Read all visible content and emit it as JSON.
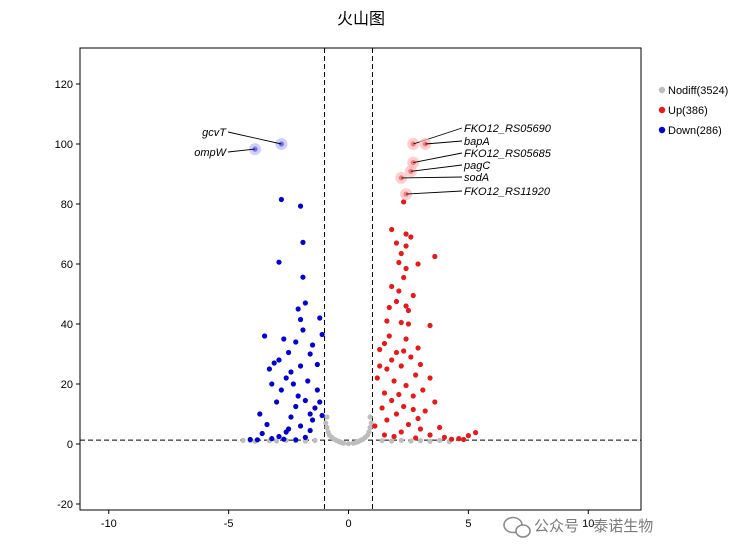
{
  "chart_data": {
    "type": "scatter",
    "title": "火山图",
    "xlabel": "",
    "ylabel": "",
    "xlim": [
      -11.2,
      12.2
    ],
    "ylim": [
      -22,
      132
    ],
    "x_ticks": [
      -10,
      -5,
      0,
      5,
      10
    ],
    "y_ticks": [
      -20,
      0,
      20,
      40,
      60,
      80,
      100,
      120
    ],
    "grid": false,
    "thresholds": {
      "x": [
        -1,
        1
      ],
      "y": 1.3
    },
    "legend": {
      "position": "right",
      "entries": [
        {
          "label": "Nodiff(3524)",
          "color": "#bdbdbd"
        },
        {
          "label": "Up(386)",
          "color": "#e41a1c"
        },
        {
          "label": "Down(286)",
          "color": "#0000cc"
        }
      ]
    },
    "series": [
      {
        "name": "Down",
        "color": "#0000cc",
        "points": [
          [
            -3.9,
            98.3
          ],
          [
            -2.8,
            100.0
          ],
          [
            -2.8,
            81.5
          ],
          [
            -2.0,
            79.3
          ],
          [
            -1.9,
            67.2
          ],
          [
            -2.9,
            60.6
          ],
          [
            -1.9,
            55.6
          ],
          [
            -1.8,
            47.0
          ],
          [
            -2.1,
            45.0
          ],
          [
            -2.0,
            41.5
          ],
          [
            -1.2,
            42.0
          ],
          [
            -1.9,
            38.0
          ],
          [
            -2.7,
            35.0
          ],
          [
            -2.2,
            34.0
          ],
          [
            -1.5,
            33.0
          ],
          [
            -3.5,
            36.0
          ],
          [
            -1.1,
            36.5
          ],
          [
            -2.5,
            30.5
          ],
          [
            -1.6,
            30.0
          ],
          [
            -2.9,
            28.0
          ],
          [
            -3.1,
            27.0
          ],
          [
            -2.0,
            26.0
          ],
          [
            -1.3,
            26.5
          ],
          [
            -3.3,
            25.0
          ],
          [
            -2.4,
            24.0
          ],
          [
            -2.6,
            22.0
          ],
          [
            -3.2,
            20.0
          ],
          [
            -1.7,
            21.0
          ],
          [
            -2.8,
            18.0
          ],
          [
            -2.1,
            16.0
          ],
          [
            -3.0,
            14.0
          ],
          [
            -2.2,
            12.5
          ],
          [
            -1.4,
            12.0
          ],
          [
            -1.6,
            10.0
          ],
          [
            -2.4,
            9.0
          ],
          [
            -3.4,
            6.5
          ],
          [
            -2.0,
            6.0
          ],
          [
            -2.6,
            4.0
          ],
          [
            -3.6,
            3.5
          ],
          [
            -2.9,
            2.5
          ],
          [
            -3.2,
            1.8
          ],
          [
            -4.1,
            1.5
          ],
          [
            -3.8,
            1.4
          ],
          [
            -2.2,
            1.4
          ],
          [
            -1.8,
            2.2
          ],
          [
            -2.7,
            1.6
          ],
          [
            -1.3,
            18.0
          ],
          [
            -1.2,
            14.0
          ],
          [
            -1.5,
            8.0
          ],
          [
            -1.8,
            14.5
          ],
          [
            -2.3,
            20.0
          ],
          [
            -1.1,
            9.5
          ],
          [
            -3.7,
            10.0
          ],
          [
            -2.5,
            5.0
          ],
          [
            -1.6,
            4.5
          ]
        ]
      },
      {
        "name": "Up",
        "color": "#e41a1c",
        "points": [
          [
            2.7,
            100.0
          ],
          [
            3.2,
            100.0
          ],
          [
            2.7,
            93.8
          ],
          [
            2.6,
            90.9
          ],
          [
            2.2,
            88.7
          ],
          [
            2.4,
            83.3
          ],
          [
            2.3,
            80.7
          ],
          [
            1.8,
            71.5
          ],
          [
            2.4,
            70.0
          ],
          [
            2.6,
            69.0
          ],
          [
            2.0,
            67.0
          ],
          [
            2.4,
            66.0
          ],
          [
            2.2,
            63.5
          ],
          [
            3.6,
            62.5
          ],
          [
            2.9,
            60.0
          ],
          [
            2.1,
            60.5
          ],
          [
            2.4,
            58.5
          ],
          [
            2.3,
            55.5
          ],
          [
            1.8,
            52.5
          ],
          [
            2.1,
            51.0
          ],
          [
            2.7,
            49.5
          ],
          [
            2.0,
            47.5
          ],
          [
            2.4,
            46.0
          ],
          [
            1.7,
            45.5
          ],
          [
            2.5,
            44.5
          ],
          [
            1.6,
            41.0
          ],
          [
            2.2,
            40.5
          ],
          [
            2.5,
            40.0
          ],
          [
            3.4,
            39.5
          ],
          [
            1.7,
            36.0
          ],
          [
            2.4,
            35.0
          ],
          [
            1.5,
            33.5
          ],
          [
            2.9,
            32.0
          ],
          [
            2.3,
            31.0
          ],
          [
            2.0,
            30.5
          ],
          [
            1.3,
            31.5
          ],
          [
            2.6,
            29.0
          ],
          [
            1.8,
            28.0
          ],
          [
            3.0,
            26.5
          ],
          [
            2.2,
            26.0
          ],
          [
            1.6,
            25.0
          ],
          [
            2.8,
            23.0
          ],
          [
            3.4,
            22.0
          ],
          [
            1.9,
            21.0
          ],
          [
            2.4,
            19.5
          ],
          [
            3.1,
            18.0
          ],
          [
            1.5,
            17.0
          ],
          [
            2.7,
            16.0
          ],
          [
            3.6,
            14.0
          ],
          [
            1.8,
            14.5
          ],
          [
            2.3,
            12.5
          ],
          [
            3.2,
            11.0
          ],
          [
            2.0,
            10.0
          ],
          [
            2.9,
            8.5
          ],
          [
            1.6,
            8.0
          ],
          [
            2.5,
            6.5
          ],
          [
            3.8,
            5.5
          ],
          [
            2.2,
            4.0
          ],
          [
            3.4,
            3.0
          ],
          [
            2.8,
            2.0
          ],
          [
            4.0,
            2.2
          ],
          [
            4.3,
            1.6
          ],
          [
            4.6,
            1.8
          ],
          [
            4.8,
            1.5
          ],
          [
            5.0,
            2.8
          ],
          [
            5.3,
            3.8
          ],
          [
            1.2,
            22.0
          ],
          [
            1.4,
            12.0
          ],
          [
            1.1,
            6.0
          ],
          [
            1.5,
            3.0
          ],
          [
            1.3,
            26.0
          ],
          [
            2.1,
            16.5
          ],
          [
            2.7,
            11.5
          ],
          [
            3.0,
            5.0
          ],
          [
            1.9,
            2.5
          ]
        ]
      },
      {
        "name": "Nodiff",
        "color": "#bdbdbd",
        "points": [
          [
            -4.4,
            1.2
          ],
          [
            -4.1,
            1.1
          ],
          [
            -3.9,
            0.9
          ],
          [
            -3.3,
            1.1
          ],
          [
            -3.0,
            1.0
          ],
          [
            -2.6,
            1.2
          ],
          [
            -2.2,
            1.1
          ],
          [
            -1.8,
            1.0
          ],
          [
            -1.4,
            1.2
          ],
          [
            -0.95,
            7.0
          ],
          [
            -0.9,
            5.5
          ],
          [
            -0.85,
            4.0
          ],
          [
            -0.8,
            3.0
          ],
          [
            -0.7,
            2.2
          ],
          [
            -0.6,
            1.6
          ],
          [
            -0.5,
            1.2
          ],
          [
            -0.4,
            0.8
          ],
          [
            -0.3,
            0.5
          ],
          [
            -0.2,
            0.3
          ],
          [
            0.0,
            0.1
          ],
          [
            0.2,
            0.3
          ],
          [
            0.3,
            0.5
          ],
          [
            0.4,
            0.8
          ],
          [
            0.5,
            1.2
          ],
          [
            0.6,
            1.6
          ],
          [
            0.7,
            2.2
          ],
          [
            0.8,
            3.0
          ],
          [
            0.85,
            4.0
          ],
          [
            0.9,
            5.5
          ],
          [
            0.95,
            7.0
          ],
          [
            1.4,
            1.1
          ],
          [
            1.8,
            1.0
          ],
          [
            2.2,
            1.2
          ],
          [
            2.6,
            1.0
          ],
          [
            3.0,
            1.1
          ],
          [
            3.4,
            0.9
          ],
          [
            3.8,
            1.2
          ],
          [
            4.2,
            0.8
          ],
          [
            -0.9,
            9.0
          ],
          [
            0.9,
            9.0
          ]
        ]
      }
    ],
    "annotations": [
      {
        "label": "gcvT",
        "x": -2.8,
        "y": 100.0
      },
      {
        "label": "ompW",
        "x": -3.9,
        "y": 98.3
      },
      {
        "label": "FKO12_RS05690",
        "x": 2.7,
        "y": 100.0
      },
      {
        "label": "bapA",
        "x": 3.2,
        "y": 100.0
      },
      {
        "label": "FKO12_RS05685",
        "x": 2.7,
        "y": 93.8
      },
      {
        "label": "pagC",
        "x": 2.6,
        "y": 90.9
      },
      {
        "label": "sodA",
        "x": 2.2,
        "y": 88.7
      },
      {
        "label": "FKO12_RS11920",
        "x": 2.4,
        "y": 83.3
      }
    ]
  },
  "watermark": "公众号 · 泰诺生物"
}
